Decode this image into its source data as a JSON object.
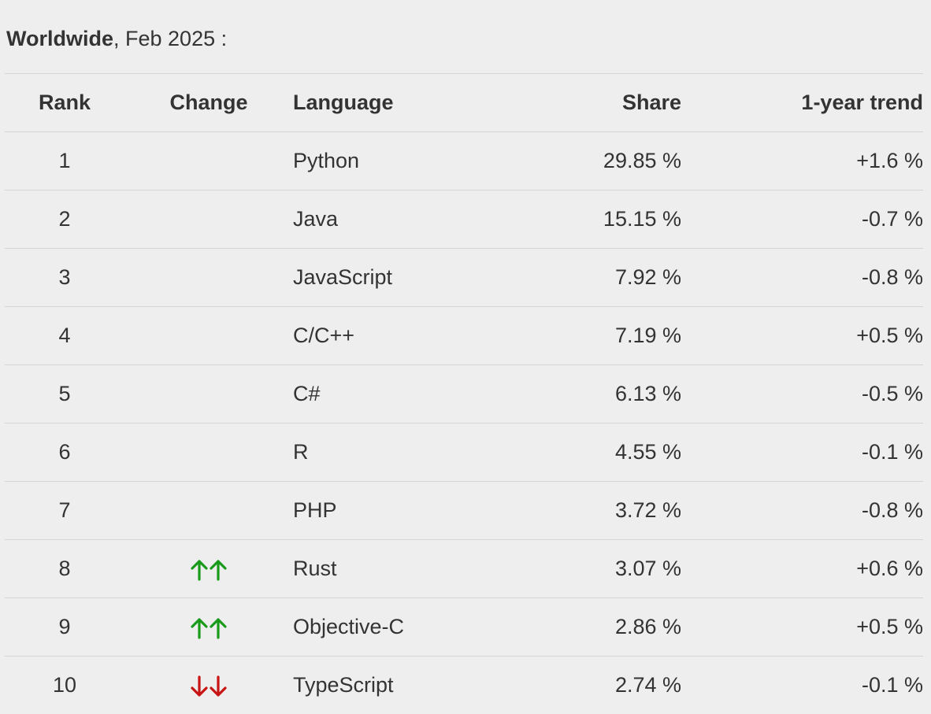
{
  "heading": {
    "region": "Worldwide",
    "period": ", Feb 2025 :"
  },
  "table": {
    "headers": {
      "rank": "Rank",
      "change": "Change",
      "language": "Language",
      "share": "Share",
      "trend": "1-year trend"
    },
    "rows": [
      {
        "rank": "1",
        "change": "none",
        "language": "Python",
        "share": "29.85 %",
        "trend": "+1.6 %"
      },
      {
        "rank": "2",
        "change": "none",
        "language": "Java",
        "share": "15.15 %",
        "trend": "-0.7 %"
      },
      {
        "rank": "3",
        "change": "none",
        "language": "JavaScript",
        "share": "7.92 %",
        "trend": "-0.8 %"
      },
      {
        "rank": "4",
        "change": "none",
        "language": "C/C++",
        "share": "7.19 %",
        "trend": "+0.5 %"
      },
      {
        "rank": "5",
        "change": "none",
        "language": "C#",
        "share": "6.13 %",
        "trend": "-0.5 %"
      },
      {
        "rank": "6",
        "change": "none",
        "language": "R",
        "share": "4.55 %",
        "trend": "-0.1 %"
      },
      {
        "rank": "7",
        "change": "none",
        "language": "PHP",
        "share": "3.72 %",
        "trend": "-0.8 %"
      },
      {
        "rank": "8",
        "change": "up-up",
        "language": "Rust",
        "share": "3.07 %",
        "trend": "+0.6 %"
      },
      {
        "rank": "9",
        "change": "up-up",
        "language": "Objective-C",
        "share": "2.86 %",
        "trend": "+0.5 %"
      },
      {
        "rank": "10",
        "change": "down-down",
        "language": "TypeScript",
        "share": "2.74 %",
        "trend": "-0.1 %"
      }
    ]
  },
  "icons": {
    "up": "double-up-arrow-icon",
    "down": "double-down-arrow-icon"
  },
  "colors": {
    "background": "#eeeeee",
    "text": "#333333",
    "divider": "#d4d4d4",
    "up_arrow": "#1a9a1a",
    "down_arrow": "#c81414"
  }
}
